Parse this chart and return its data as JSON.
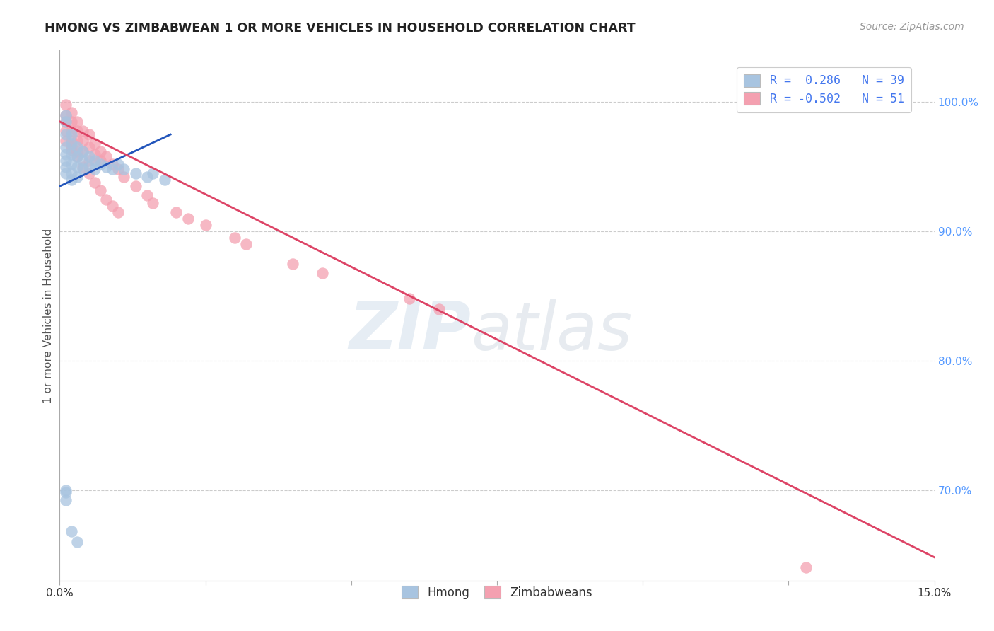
{
  "title": "HMONG VS ZIMBABWEAN 1 OR MORE VEHICLES IN HOUSEHOLD CORRELATION CHART",
  "source": "Source: ZipAtlas.com",
  "ylabel": "1 or more Vehicles in Household",
  "ytick_values": [
    0.7,
    0.8,
    0.9,
    1.0
  ],
  "ytick_labels": [
    "70.0%",
    "80.0%",
    "90.0%",
    "100.0%"
  ],
  "xlim": [
    0.0,
    0.15
  ],
  "ylim": [
    0.63,
    1.04
  ],
  "hmong_color": "#a8c4e0",
  "zimbabwean_color": "#f4a0b0",
  "hmong_line_color": "#2255bb",
  "zimbabwean_line_color": "#dd4466",
  "background_color": "#ffffff",
  "watermark_zip": "ZIP",
  "watermark_atlas": "atlas",
  "hmong_x": [
    0.001,
    0.001,
    0.001,
    0.001,
    0.001,
    0.001,
    0.001,
    0.001,
    0.002,
    0.002,
    0.002,
    0.002,
    0.002,
    0.002,
    0.003,
    0.003,
    0.003,
    0.003,
    0.004,
    0.004,
    0.004,
    0.005,
    0.005,
    0.006,
    0.006,
    0.007,
    0.008,
    0.009,
    0.01,
    0.011,
    0.013,
    0.015,
    0.016,
    0.018,
    0.001,
    0.001,
    0.001,
    0.002,
    0.003
  ],
  "hmong_y": [
    0.99,
    0.985,
    0.975,
    0.965,
    0.96,
    0.955,
    0.95,
    0.945,
    0.975,
    0.968,
    0.96,
    0.952,
    0.945,
    0.94,
    0.965,
    0.958,
    0.95,
    0.942,
    0.962,
    0.955,
    0.948,
    0.958,
    0.95,
    0.955,
    0.948,
    0.952,
    0.95,
    0.948,
    0.952,
    0.948,
    0.945,
    0.942,
    0.945,
    0.94,
    0.7,
    0.698,
    0.692,
    0.668,
    0.66
  ],
  "zimbabwean_x": [
    0.001,
    0.001,
    0.001,
    0.001,
    0.002,
    0.002,
    0.002,
    0.002,
    0.002,
    0.003,
    0.003,
    0.003,
    0.003,
    0.004,
    0.004,
    0.004,
    0.005,
    0.005,
    0.005,
    0.006,
    0.006,
    0.007,
    0.007,
    0.008,
    0.009,
    0.01,
    0.011,
    0.013,
    0.015,
    0.016,
    0.02,
    0.022,
    0.025,
    0.03,
    0.032,
    0.04,
    0.045,
    0.06,
    0.065,
    0.001,
    0.002,
    0.003,
    0.004,
    0.005,
    0.006,
    0.007,
    0.008,
    0.009,
    0.01,
    0.128
  ],
  "zimbabwean_y": [
    0.998,
    0.99,
    0.985,
    0.978,
    0.992,
    0.985,
    0.978,
    0.97,
    0.963,
    0.985,
    0.978,
    0.97,
    0.962,
    0.978,
    0.97,
    0.962,
    0.975,
    0.965,
    0.955,
    0.968,
    0.96,
    0.962,
    0.955,
    0.958,
    0.952,
    0.948,
    0.942,
    0.935,
    0.928,
    0.922,
    0.915,
    0.91,
    0.905,
    0.895,
    0.89,
    0.875,
    0.868,
    0.848,
    0.84,
    0.97,
    0.965,
    0.958,
    0.95,
    0.945,
    0.938,
    0.932,
    0.925,
    0.92,
    0.915,
    0.64
  ],
  "hmong_line_x": [
    0.0,
    0.019
  ],
  "hmong_line_y": [
    0.935,
    0.975
  ],
  "zimbabwean_line_x": [
    0.0,
    0.15
  ],
  "zimbabwean_line_y": [
    0.985,
    0.648
  ]
}
